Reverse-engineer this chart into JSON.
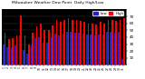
{
  "title": "Milwaukee Weather Dew Point",
  "subtitle": "Daily High/Low",
  "legend_high": "High",
  "legend_low": "Low",
  "color_high": "#ff0000",
  "color_low": "#2222cc",
  "background_color": "#ffffff",
  "plot_bg": "#000000",
  "ylim": [
    0,
    80
  ],
  "ytick_values": [
    10,
    20,
    30,
    40,
    50,
    60,
    70
  ],
  "categories": [
    "1",
    "2",
    "3",
    "4",
    "5",
    "6",
    "7",
    "8",
    "9",
    "10",
    "11",
    "12",
    "13",
    "14",
    "15",
    "16",
    "17",
    "18",
    "19",
    "20",
    "21",
    "22",
    "23",
    "24",
    "25",
    "26",
    "27",
    "28",
    "29",
    "30",
    "31"
  ],
  "high_values": [
    46,
    37,
    38,
    42,
    72,
    43,
    30,
    46,
    56,
    60,
    51,
    50,
    57,
    65,
    62,
    65,
    67,
    65,
    65,
    64,
    62,
    60,
    60,
    58,
    62,
    60,
    65,
    65,
    63,
    65,
    68
  ],
  "low_values": [
    30,
    26,
    24,
    28,
    42,
    22,
    16,
    28,
    38,
    40,
    32,
    32,
    40,
    45,
    42,
    45,
    48,
    48,
    46,
    46,
    45,
    44,
    44,
    42,
    44,
    44,
    48,
    48,
    46,
    48,
    8
  ]
}
